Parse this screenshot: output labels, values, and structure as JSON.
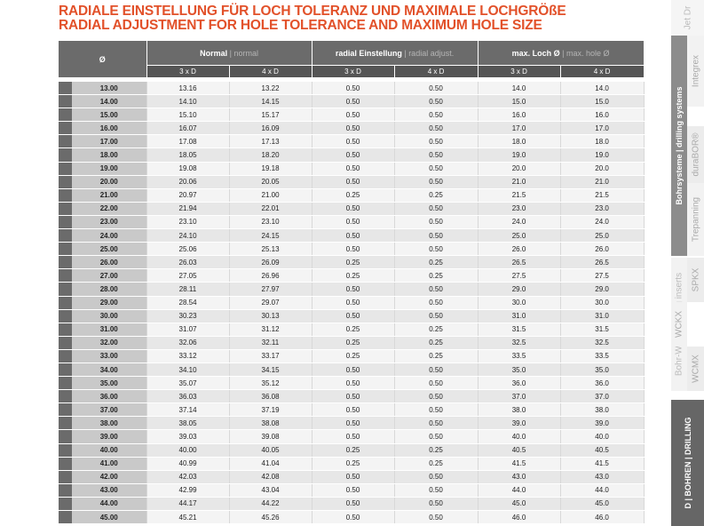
{
  "title_de": "RADIALE EINSTELLUNG FÜR LOCH TOLERANZ UND MAXIMALE LOCHGRÖßE",
  "title_en": "RADIAL ADJUSTMENT  FOR HOLE TOLERANCE AND MAXIMUM HOLE SIZE",
  "header": {
    "diameter": "Ø",
    "groups": [
      {
        "de": "Normal",
        "en": "normal"
      },
      {
        "de": "radial Einstellung",
        "en": "radial adjust."
      },
      {
        "de": "max. Loch Ø",
        "en": "max. hole Ø"
      }
    ],
    "sub": [
      "3 x D",
      "4 x D",
      "3 x D",
      "4 x D",
      "3 x D",
      "4 x D"
    ],
    "sep": " | "
  },
  "rows": [
    [
      "13.00",
      "13.16",
      "13.22",
      "0.50",
      "0.50",
      "14.0",
      "14.0"
    ],
    [
      "14.00",
      "14.10",
      "14.15",
      "0.50",
      "0.50",
      "15.0",
      "15.0"
    ],
    [
      "15.00",
      "15.10",
      "15.17",
      "0.50",
      "0.50",
      "16.0",
      "16.0"
    ],
    [
      "16.00",
      "16.07",
      "16.09",
      "0.50",
      "0.50",
      "17.0",
      "17.0"
    ],
    [
      "17.00",
      "17.08",
      "17.13",
      "0.50",
      "0.50",
      "18.0",
      "18.0"
    ],
    [
      "18.00",
      "18.05",
      "18.20",
      "0.50",
      "0.50",
      "19.0",
      "19.0"
    ],
    [
      "19.00",
      "19.08",
      "19.18",
      "0.50",
      "0.50",
      "20.0",
      "20.0"
    ],
    [
      "20.00",
      "20.06",
      "20.05",
      "0.50",
      "0.50",
      "21.0",
      "21.0"
    ],
    [
      "21.00",
      "20.97",
      "21.00",
      "0.25",
      "0.25",
      "21.5",
      "21.5"
    ],
    [
      "22.00",
      "21.94",
      "22.01",
      "0.50",
      "0.50",
      "23.0",
      "23.0"
    ],
    [
      "23.00",
      "23.10",
      "23.10",
      "0.50",
      "0.50",
      "24.0",
      "24.0"
    ],
    [
      "24.00",
      "24.10",
      "24.15",
      "0.50",
      "0.50",
      "25.0",
      "25.0"
    ],
    [
      "25.00",
      "25.06",
      "25.13",
      "0.50",
      "0.50",
      "26.0",
      "26.0"
    ],
    [
      "26.00",
      "26.03",
      "26.09",
      "0.25",
      "0.25",
      "26.5",
      "26.5"
    ],
    [
      "27.00",
      "27.05",
      "26.96",
      "0.25",
      "0.25",
      "27.5",
      "27.5"
    ],
    [
      "28.00",
      "28.11",
      "27.97",
      "0.50",
      "0.50",
      "29.0",
      "29.0"
    ],
    [
      "29.00",
      "28.54",
      "29.07",
      "0.50",
      "0.50",
      "30.0",
      "30.0"
    ],
    [
      "30.00",
      "30.23",
      "30.13",
      "0.50",
      "0.50",
      "31.0",
      "31.0"
    ],
    [
      "31.00",
      "31.07",
      "31.12",
      "0.25",
      "0.25",
      "31.5",
      "31.5"
    ],
    [
      "32.00",
      "32.06",
      "32.11",
      "0.25",
      "0.25",
      "32.5",
      "32.5"
    ],
    [
      "33.00",
      "33.12",
      "33.17",
      "0.25",
      "0.25",
      "33.5",
      "33.5"
    ],
    [
      "34.00",
      "34.10",
      "34.15",
      "0.50",
      "0.50",
      "35.0",
      "35.0"
    ],
    [
      "35.00",
      "35.07",
      "35.12",
      "0.50",
      "0.50",
      "36.0",
      "36.0"
    ],
    [
      "36.00",
      "36.03",
      "36.08",
      "0.50",
      "0.50",
      "37.0",
      "37.0"
    ],
    [
      "37.00",
      "37.14",
      "37.19",
      "0.50",
      "0.50",
      "38.0",
      "38.0"
    ],
    [
      "38.00",
      "38.05",
      "38.08",
      "0.50",
      "0.50",
      "39.0",
      "39.0"
    ],
    [
      "39.00",
      "39.03",
      "39.08",
      "0.50",
      "0.50",
      "40.0",
      "40.0"
    ],
    [
      "40.00",
      "40.00",
      "40.05",
      "0.25",
      "0.25",
      "40.5",
      "40.5"
    ],
    [
      "41.00",
      "40.99",
      "41.04",
      "0.25",
      "0.25",
      "41.5",
      "41.5"
    ],
    [
      "42.00",
      "42.03",
      "42.08",
      "0.50",
      "0.50",
      "43.0",
      "43.0"
    ],
    [
      "43.00",
      "42.99",
      "43.04",
      "0.50",
      "0.50",
      "44.0",
      "44.0"
    ],
    [
      "44.00",
      "44.17",
      "44.22",
      "0.50",
      "0.50",
      "45.0",
      "45.0"
    ],
    [
      "45.00",
      "45.21",
      "45.26",
      "0.50",
      "0.50",
      "46.0",
      "46.0"
    ]
  ],
  "sidebar": [
    {
      "label": "Jet Dr",
      "color": "#bbbbbb",
      "bg": "#f5f5f5"
    },
    {
      "label": "Bohrsysteme | drilling systems",
      "color": "#ffffff",
      "bg": "#8c8c8c"
    },
    {
      "label": "Integrex",
      "color": "#aaaaaa",
      "bg": "#f2f2f2"
    },
    {
      "label": "duraBOR®",
      "color": "#aaaaaa",
      "bg": "#ececec"
    },
    {
      "label": "Trepanning",
      "color": "#aaaaaa",
      "bg": "#f2f2f2"
    },
    {
      "label": "Bohr-WSP | drilling inserts",
      "color": "#bbbbbb",
      "bg": "#f2f2f2"
    },
    {
      "label": "SPKX",
      "color": "#aaaaaa",
      "bg": "#ececec"
    },
    {
      "label": "WCKX",
      "color": "#aaaaaa",
      "bg": "#f2f2f2"
    },
    {
      "label": "WCMX",
      "color": "#aaaaaa",
      "bg": "#ececec"
    },
    {
      "label": "D | BOHREN | DRILLING",
      "color": "#ffffff",
      "bg": "#666666"
    }
  ],
  "colors": {
    "accent": "#e2512a",
    "header": "#6b6b6b"
  }
}
